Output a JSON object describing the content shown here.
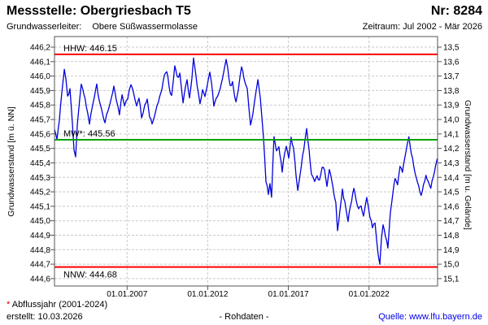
{
  "header": {
    "title": "Messstelle: Obergriesbach T5",
    "station_number": "Nr: 8284",
    "aquifer_label": "Grundwasserleiter:",
    "aquifer_value": "Obere Süßwassermolasse",
    "period": "Zeitraum: Jul 2002 - Mär 2026"
  },
  "footer": {
    "footnote_star": "*",
    "footnote_text": " Abflussjahr (2001-2024)",
    "created": "erstellt:  10.03.2026",
    "center_note": "- Rohdaten -",
    "source": "Quelle: www.lfu.bayern.de"
  },
  "colors": {
    "curve": "#0000dd",
    "reference_red": "#ff0000",
    "reference_green": "#00a000",
    "grid": "#c9c9c9",
    "frame": "#555555",
    "link": "#0000ee",
    "footnote_star": "#cc0000"
  },
  "chart_data": {
    "type": "line",
    "series_name": "Grundwasserstand Rohdaten",
    "x_axis": {
      "range_years": [
        2002.5,
        2026.25
      ],
      "tick_years": [
        2007,
        2012,
        2017,
        2022
      ],
      "tick_labels": [
        "01.01.2007",
        "01.01.2012",
        "01.01.2017",
        "01.01.2022"
      ],
      "grid": true
    },
    "left_axis": {
      "title": "Grundwasserstand [m ü. NN]",
      "range": [
        444.549,
        446.273
      ],
      "tick_values": [
        446.2,
        446.1,
        446.0,
        445.9,
        445.8,
        445.7,
        445.6,
        445.5,
        445.4,
        445.3,
        445.2,
        445.1,
        445.0,
        444.9,
        444.8,
        444.7,
        444.6
      ],
      "tick_labels": [
        "446,2",
        "446,1",
        "446,0",
        "445,9",
        "445,8",
        "445,7",
        "445,6",
        "445,5",
        "445,4",
        "445,3",
        "445,2",
        "445,1",
        "445,0",
        "444,9",
        "444,8",
        "444,7",
        "444,6"
      ],
      "grid": true
    },
    "right_axis": {
      "title": "Grundwasserstand [m u. Gelände]",
      "tick_labels": [
        "13,5",
        "13,6",
        "13,7",
        "13,8",
        "13,9",
        "14,0",
        "14,1",
        "14,2",
        "14,3",
        "14,4",
        "14,5",
        "14,6",
        "14,7",
        "14,8",
        "14,9",
        "15,0",
        "15,1"
      ]
    },
    "reference_lines": [
      {
        "name": "HHW",
        "label": "HHW: 446.15",
        "value": 446.15,
        "color": "#ff0000",
        "label_side": "above"
      },
      {
        "name": "MW",
        "label": "MW*: 445.56",
        "value": 445.56,
        "color": "#00a000",
        "label_side": "above"
      },
      {
        "name": "NNW",
        "label": "NNW: 444.68",
        "value": 444.68,
        "color": "#ff0000",
        "label_side": "below"
      }
    ],
    "points": [
      [
        2002.5,
        445.62
      ],
      [
        2002.65,
        445.57
      ],
      [
        2002.8,
        445.7
      ],
      [
        2002.95,
        445.88
      ],
      [
        2003.11,
        446.04
      ],
      [
        2003.21,
        445.97
      ],
      [
        2003.31,
        445.85
      ],
      [
        2003.46,
        445.91
      ],
      [
        2003.61,
        445.68
      ],
      [
        2003.71,
        445.5
      ],
      [
        2003.81,
        445.44
      ],
      [
        2003.91,
        445.66
      ],
      [
        2004.06,
        445.84
      ],
      [
        2004.16,
        445.95
      ],
      [
        2004.32,
        445.87
      ],
      [
        2004.47,
        445.8
      ],
      [
        2004.67,
        445.67
      ],
      [
        2004.82,
        445.77
      ],
      [
        2004.97,
        445.86
      ],
      [
        2005.12,
        445.94
      ],
      [
        2005.27,
        445.83
      ],
      [
        2005.48,
        445.73
      ],
      [
        2005.63,
        445.68
      ],
      [
        2005.83,
        445.77
      ],
      [
        2006.03,
        445.85
      ],
      [
        2006.18,
        445.93
      ],
      [
        2006.33,
        445.84
      ],
      [
        2006.53,
        445.74
      ],
      [
        2006.69,
        445.87
      ],
      [
        2006.84,
        445.79
      ],
      [
        2007.04,
        445.85
      ],
      [
        2007.24,
        445.95
      ],
      [
        2007.39,
        445.89
      ],
      [
        2007.59,
        445.8
      ],
      [
        2007.74,
        445.85
      ],
      [
        2007.9,
        445.72
      ],
      [
        2008.1,
        445.8
      ],
      [
        2008.25,
        445.83
      ],
      [
        2008.4,
        445.72
      ],
      [
        2008.55,
        445.67
      ],
      [
        2008.75,
        445.75
      ],
      [
        2008.95,
        445.83
      ],
      [
        2009.16,
        445.92
      ],
      [
        2009.31,
        446.0
      ],
      [
        2009.46,
        446.04
      ],
      [
        2009.61,
        445.92
      ],
      [
        2009.76,
        445.86
      ],
      [
        2009.96,
        446.07
      ],
      [
        2010.11,
        445.99
      ],
      [
        2010.27,
        446.01
      ],
      [
        2010.47,
        445.81
      ],
      [
        2010.62,
        445.92
      ],
      [
        2010.72,
        445.98
      ],
      [
        2010.87,
        445.84
      ],
      [
        2011.02,
        445.99
      ],
      [
        2011.12,
        446.13
      ],
      [
        2011.27,
        446.0
      ],
      [
        2011.42,
        445.88
      ],
      [
        2011.52,
        445.81
      ],
      [
        2011.68,
        445.9
      ],
      [
        2011.83,
        445.86
      ],
      [
        2011.98,
        445.94
      ],
      [
        2012.13,
        446.03
      ],
      [
        2012.23,
        445.96
      ],
      [
        2012.38,
        445.79
      ],
      [
        2012.53,
        445.84
      ],
      [
        2012.69,
        445.88
      ],
      [
        2012.84,
        445.94
      ],
      [
        2012.99,
        446.02
      ],
      [
        2013.14,
        446.12
      ],
      [
        2013.24,
        446.05
      ],
      [
        2013.39,
        445.93
      ],
      [
        2013.54,
        445.96
      ],
      [
        2013.75,
        445.81
      ],
      [
        2013.9,
        445.91
      ],
      [
        2014.1,
        446.06
      ],
      [
        2014.25,
        445.99
      ],
      [
        2014.45,
        445.91
      ],
      [
        2014.65,
        445.66
      ],
      [
        2014.8,
        445.75
      ],
      [
        2014.95,
        445.85
      ],
      [
        2015.11,
        445.97
      ],
      [
        2015.26,
        445.85
      ],
      [
        2015.46,
        445.56
      ],
      [
        2015.61,
        445.28
      ],
      [
        2015.76,
        445.18
      ],
      [
        2015.86,
        445.26
      ],
      [
        2015.96,
        445.17
      ],
      [
        2016.11,
        445.58
      ],
      [
        2016.26,
        445.49
      ],
      [
        2016.41,
        445.52
      ],
      [
        2016.62,
        445.34
      ],
      [
        2016.77,
        445.47
      ],
      [
        2016.87,
        445.52
      ],
      [
        2017.02,
        445.44
      ],
      [
        2017.17,
        445.57
      ],
      [
        2017.32,
        445.5
      ],
      [
        2017.47,
        445.33
      ],
      [
        2017.58,
        445.21
      ],
      [
        2017.73,
        445.32
      ],
      [
        2017.88,
        445.45
      ],
      [
        2018.03,
        445.55
      ],
      [
        2018.13,
        445.64
      ],
      [
        2018.28,
        445.49
      ],
      [
        2018.43,
        445.33
      ],
      [
        2018.63,
        445.26
      ],
      [
        2018.78,
        445.31
      ],
      [
        2018.93,
        445.28
      ],
      [
        2019.09,
        445.37
      ],
      [
        2019.24,
        445.35
      ],
      [
        2019.39,
        445.24
      ],
      [
        2019.54,
        445.36
      ],
      [
        2019.69,
        445.28
      ],
      [
        2019.84,
        445.18
      ],
      [
        2019.94,
        445.13
      ],
      [
        2020.05,
        444.93
      ],
      [
        2020.2,
        445.08
      ],
      [
        2020.35,
        445.21
      ],
      [
        2020.5,
        445.12
      ],
      [
        2020.7,
        445.0
      ],
      [
        2020.85,
        445.1
      ],
      [
        2021.06,
        445.22
      ],
      [
        2021.21,
        445.14
      ],
      [
        2021.36,
        445.08
      ],
      [
        2021.51,
        445.11
      ],
      [
        2021.66,
        445.03
      ],
      [
        2021.86,
        445.15
      ],
      [
        2022.06,
        445.02
      ],
      [
        2022.21,
        444.96
      ],
      [
        2022.37,
        444.99
      ],
      [
        2022.47,
        444.86
      ],
      [
        2022.57,
        444.76
      ],
      [
        2022.67,
        444.71
      ],
      [
        2022.77,
        444.88
      ],
      [
        2022.87,
        444.97
      ],
      [
        2023.02,
        444.9
      ],
      [
        2023.17,
        444.82
      ],
      [
        2023.32,
        445.05
      ],
      [
        2023.47,
        445.18
      ],
      [
        2023.62,
        445.3
      ],
      [
        2023.77,
        445.25
      ],
      [
        2023.92,
        445.38
      ],
      [
        2024.07,
        445.33
      ],
      [
        2024.22,
        445.44
      ],
      [
        2024.37,
        445.52
      ],
      [
        2024.47,
        445.57
      ],
      [
        2024.62,
        445.47
      ],
      [
        2024.78,
        445.38
      ],
      [
        2024.93,
        445.3
      ],
      [
        2025.08,
        445.23
      ],
      [
        2025.23,
        445.18
      ],
      [
        2025.38,
        445.25
      ],
      [
        2025.53,
        445.31
      ],
      [
        2025.68,
        445.27
      ],
      [
        2025.83,
        445.23
      ],
      [
        2025.98,
        445.31
      ],
      [
        2026.13,
        445.38
      ],
      [
        2026.23,
        445.43
      ]
    ]
  }
}
